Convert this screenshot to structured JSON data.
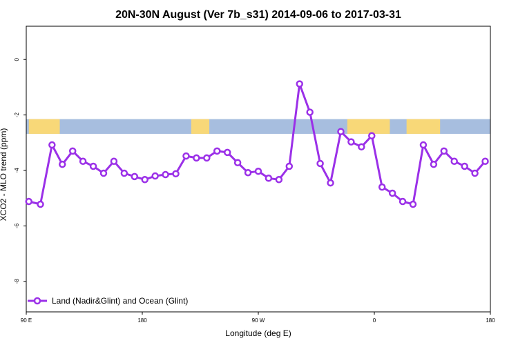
{
  "chart_data": {
    "type": "line",
    "title": "20N-30N August (Ver 7b_s31)   2014-09-06 to 2017-03-31",
    "xlabel": "Longitude (deg E)",
    "ylabel": "XCO2 - MLO trend (ppm)",
    "xlim": [
      90,
      450
    ],
    "ylim": [
      -9.1,
      1.2
    ],
    "x_ticks": [
      {
        "value": 90,
        "label": "90 E"
      },
      {
        "value": 180,
        "label": "180"
      },
      {
        "value": 270,
        "label": "90 W"
      },
      {
        "value": 360,
        "label": "0"
      },
      {
        "value": 450,
        "label": "180"
      }
    ],
    "y_ticks": [
      {
        "value": 0,
        "label": "0"
      },
      {
        "value": -2,
        "label": "-2"
      },
      {
        "value": -4,
        "label": "-4"
      },
      {
        "value": -6,
        "label": "-6"
      },
      {
        "value": -8,
        "label": "-8"
      }
    ],
    "map_strip": {
      "y_top": -2.15,
      "y_bottom": -2.68,
      "ocean_color": "#a7bedf",
      "land_color": "#f8d878",
      "land_ranges": [
        [
          92,
          116
        ],
        [
          218,
          232
        ],
        [
          339,
          372
        ],
        [
          385,
          411
        ]
      ]
    },
    "legend": {
      "position": "bottom-left"
    },
    "series": [
      {
        "name": "Land (Nadir&Glint) and Ocean (Glint)",
        "color": "#9b30e8",
        "x": [
          92,
          101,
          110,
          118,
          126,
          134,
          142,
          150,
          158,
          166,
          174,
          182,
          190,
          198,
          206,
          214,
          222,
          230,
          238,
          246,
          254,
          262,
          270,
          278,
          286,
          294,
          302,
          310,
          318,
          326,
          334,
          342,
          350,
          358,
          366,
          374,
          382,
          390,
          398,
          406,
          414,
          422,
          430,
          438,
          446
        ],
        "values": [
          -5.12,
          -5.22,
          -3.08,
          -3.78,
          -3.3,
          -3.67,
          -3.85,
          -4.1,
          -3.67,
          -4.1,
          -4.22,
          -4.33,
          -4.2,
          -4.15,
          -4.12,
          -3.48,
          -3.55,
          -3.55,
          -3.3,
          -3.35,
          -3.72,
          -4.08,
          -4.03,
          -4.28,
          -4.33,
          -3.85,
          -0.88,
          -1.9,
          -3.75,
          -4.45,
          -2.6,
          -2.97,
          -3.15,
          -2.75,
          -4.6,
          -4.82,
          -5.12,
          -5.22,
          -3.08,
          -3.78,
          -3.3,
          -3.67,
          -3.85,
          -4.1,
          -3.67
        ]
      }
    ]
  }
}
